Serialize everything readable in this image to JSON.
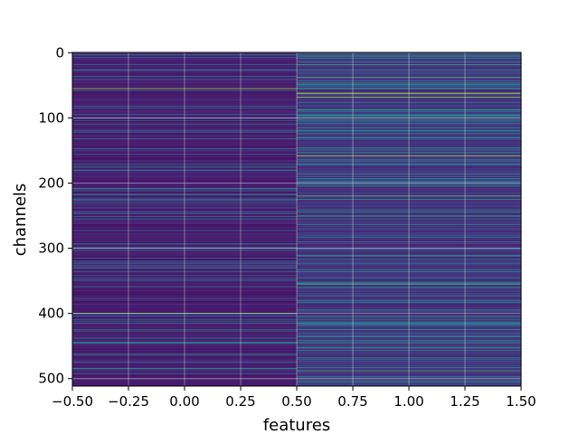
{
  "chart_data": {
    "type": "heatmap",
    "title": "",
    "xlabel": "features",
    "ylabel": "channels",
    "x_columns": [
      0,
      1
    ],
    "channel_count": 512,
    "xlim": [
      -0.5,
      1.5
    ],
    "ylim": [
      511.5,
      -0.5
    ],
    "y_inverted": true,
    "x_ticks": [
      -0.5,
      -0.25,
      0.0,
      0.25,
      0.5,
      0.75,
      1.0,
      1.25,
      1.5
    ],
    "x_tick_labels": [
      "−0.50",
      "−0.25",
      "0.00",
      "0.25",
      "0.50",
      "0.75",
      "1.00",
      "1.25",
      "1.50"
    ],
    "y_ticks": [
      0,
      100,
      200,
      300,
      400,
      500
    ],
    "y_tick_labels": [
      "0",
      "100",
      "200",
      "300",
      "400",
      "500"
    ],
    "grid": true,
    "colormap": "viridis",
    "value_range": [
      0,
      1
    ],
    "base_values": [
      0.05,
      0.12
    ],
    "highlights": {
      "column_0": [
        {
          "channel": 55,
          "value": 0.85
        },
        {
          "channel": 180,
          "value": 0.35
        },
        {
          "channel": 300,
          "value": 0.4
        },
        {
          "channel": 330,
          "value": 0.55
        },
        {
          "channel": 400,
          "value": 0.75
        },
        {
          "channel": 415,
          "value": 0.45
        },
        {
          "channel": 485,
          "value": 0.45
        }
      ],
      "column_1": [
        {
          "channel": 8,
          "value": 0.55
        },
        {
          "channel": 18,
          "value": 0.65
        },
        {
          "channel": 27,
          "value": 0.5
        },
        {
          "channel": 38,
          "value": 0.7
        },
        {
          "channel": 48,
          "value": 0.45
        },
        {
          "channel": 62,
          "value": 0.95
        },
        {
          "channel": 68,
          "value": 0.85
        },
        {
          "channel": 90,
          "value": 0.4
        },
        {
          "channel": 105,
          "value": 0.5
        },
        {
          "channel": 148,
          "value": 0.5
        },
        {
          "channel": 158,
          "value": 0.9
        },
        {
          "channel": 190,
          "value": 0.4
        },
        {
          "channel": 220,
          "value": 0.75
        },
        {
          "channel": 225,
          "value": 0.55
        },
        {
          "channel": 250,
          "value": 0.45
        },
        {
          "channel": 290,
          "value": 0.45
        },
        {
          "channel": 312,
          "value": 0.45
        },
        {
          "channel": 355,
          "value": 0.7
        },
        {
          "channel": 380,
          "value": 0.5
        },
        {
          "channel": 395,
          "value": 0.5
        },
        {
          "channel": 425,
          "value": 0.55
        },
        {
          "channel": 445,
          "value": 0.65
        },
        {
          "channel": 470,
          "value": 0.45
        },
        {
          "channel": 488,
          "value": 0.7
        },
        {
          "channel": 505,
          "value": 0.55
        }
      ]
    }
  }
}
